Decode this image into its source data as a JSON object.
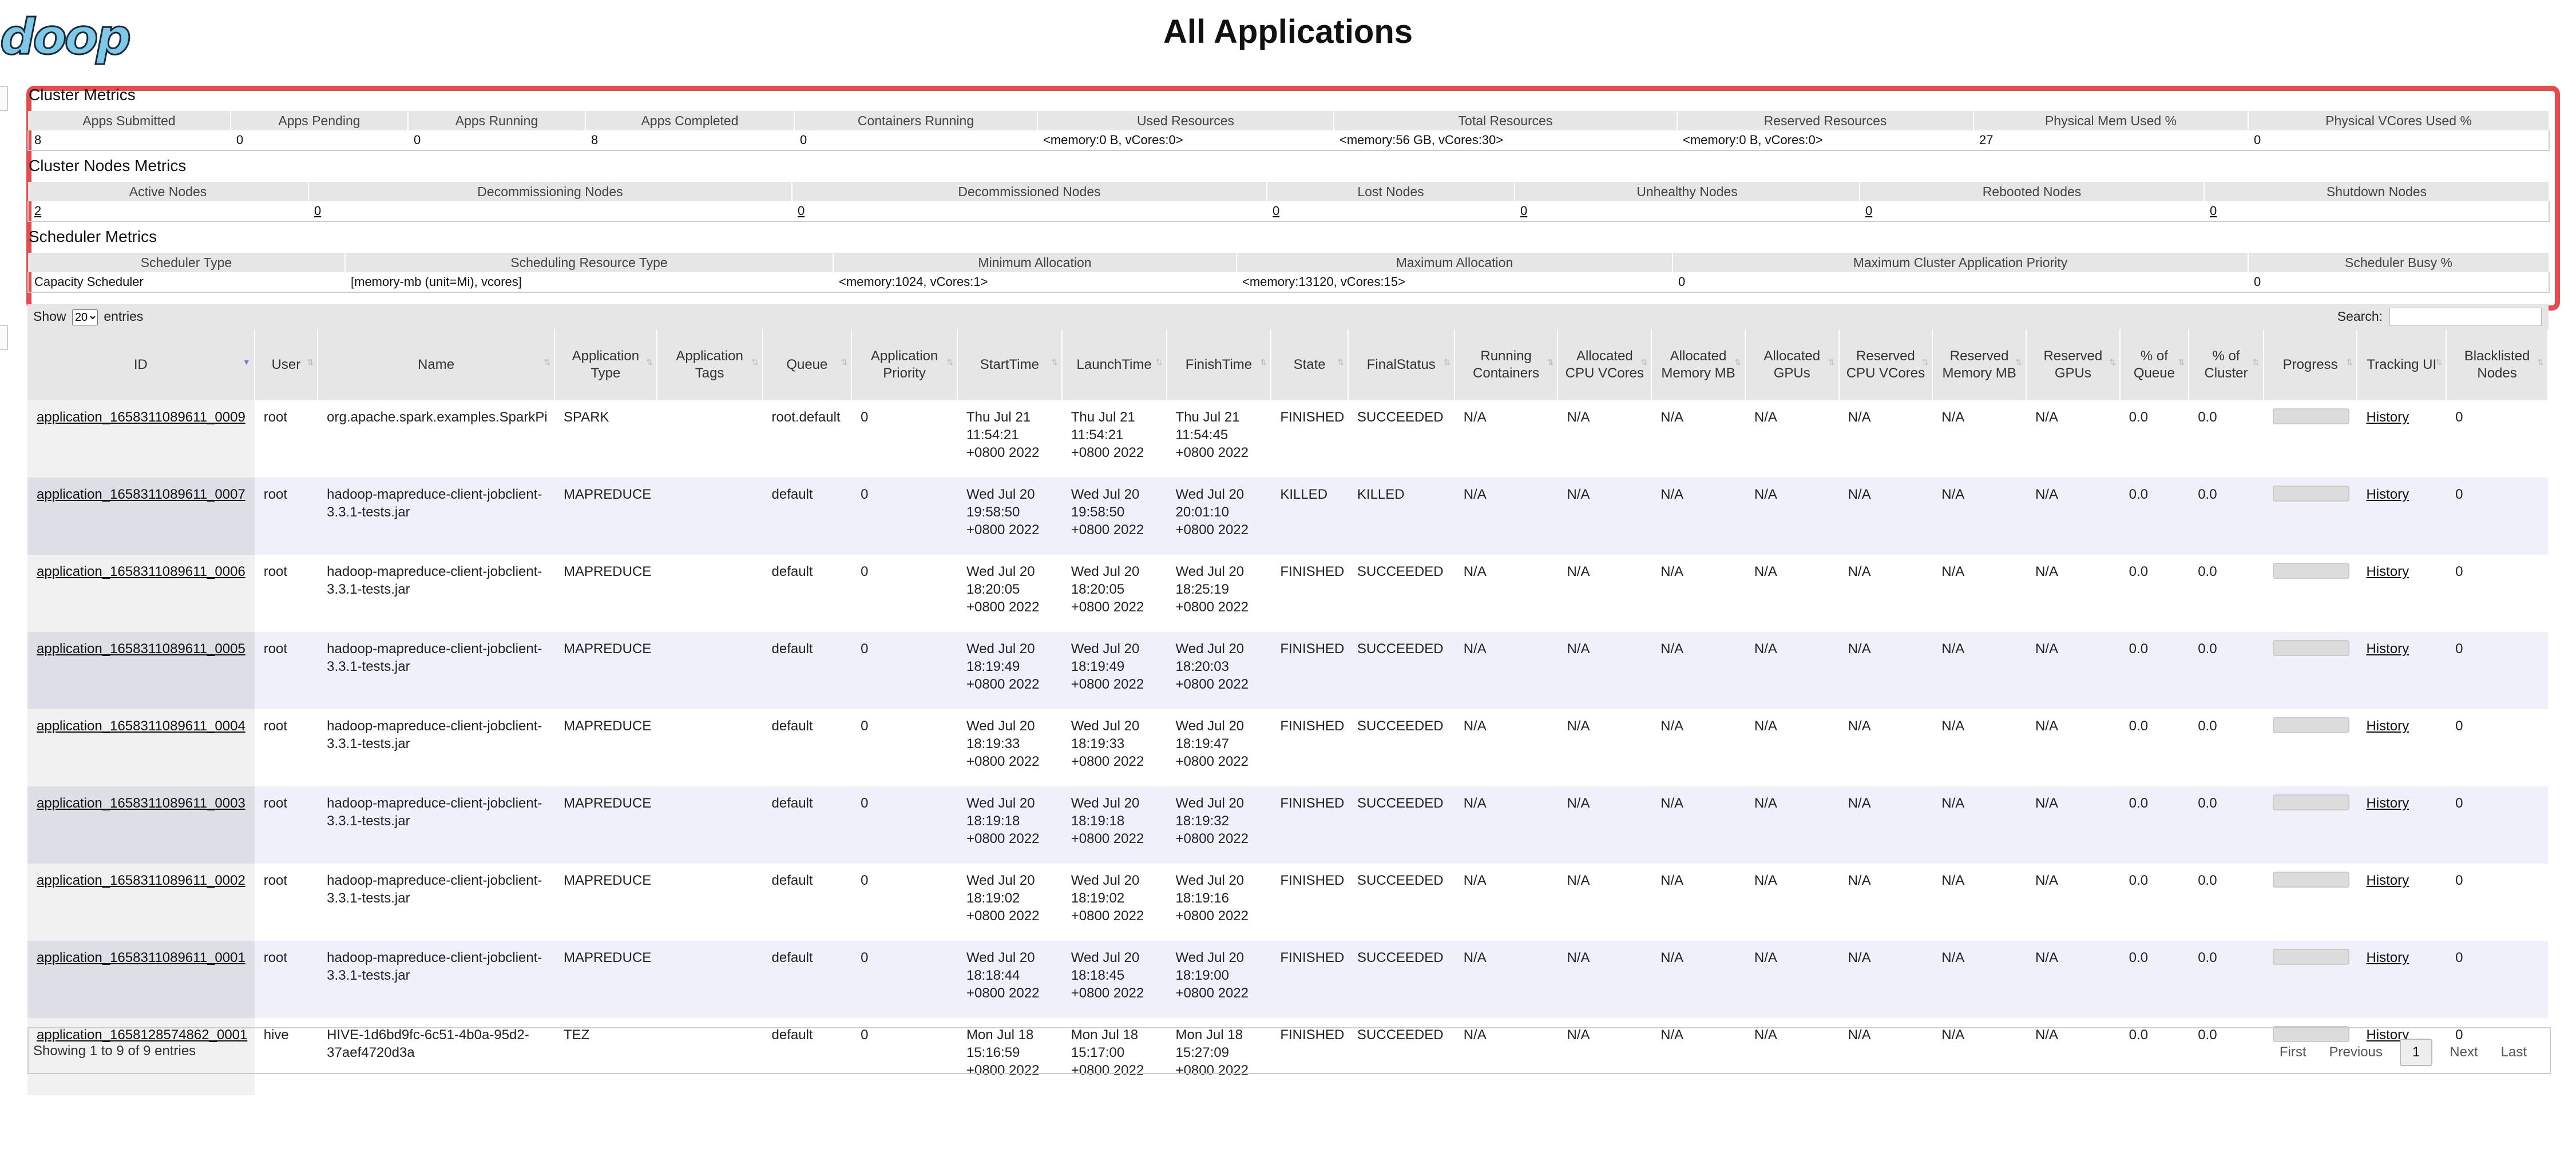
{
  "header": {
    "logo_text": "doop",
    "title": "All Applications"
  },
  "cluster_metrics": {
    "label": "Cluster Metrics",
    "headers": [
      "Apps Submitted",
      "Apps Pending",
      "Apps Running",
      "Apps Completed",
      "Containers Running",
      "Used Resources",
      "Total Resources",
      "Reserved Resources",
      "Physical Mem Used %",
      "Physical VCores Used %"
    ],
    "values": [
      "8",
      "0",
      "0",
      "8",
      "0",
      "<memory:0 B, vCores:0>",
      "<memory:56 GB, vCores:30>",
      "<memory:0 B, vCores:0>",
      "27",
      "0"
    ]
  },
  "nodes_metrics": {
    "label": "Cluster Nodes Metrics",
    "headers": [
      "Active Nodes",
      "Decommissioning Nodes",
      "Decommissioned Nodes",
      "Lost Nodes",
      "Unhealthy Nodes",
      "Rebooted Nodes",
      "Shutdown Nodes"
    ],
    "values": [
      "2",
      "0",
      "0",
      "0",
      "0",
      "0",
      "0"
    ]
  },
  "scheduler_metrics": {
    "label": "Scheduler Metrics",
    "headers": [
      "Scheduler Type",
      "Scheduling Resource Type",
      "Minimum Allocation",
      "Maximum Allocation",
      "Maximum Cluster Application Priority",
      "Scheduler Busy %"
    ],
    "values": [
      "Capacity Scheduler",
      "[memory-mb (unit=Mi), vcores]",
      "<memory:1024, vCores:1>",
      "<memory:13120, vCores:15>",
      "0",
      "0"
    ]
  },
  "controls": {
    "show_label": "Show",
    "entries_value": "20",
    "entries_label": "entries",
    "search_label": "Search:"
  },
  "columns": [
    "ID",
    "User",
    "Name",
    "Application Type",
    "Application Tags",
    "Queue",
    "Application Priority",
    "StartTime",
    "LaunchTime",
    "FinishTime",
    "State",
    "FinalStatus",
    "Running Containers",
    "Allocated CPU VCores",
    "Allocated Memory MB",
    "Allocated GPUs",
    "Reserved CPU VCores",
    "Reserved Memory MB",
    "Reserved GPUs",
    "% of Queue",
    "% of Cluster",
    "Progress",
    "Tracking UI",
    "Blacklisted Nodes"
  ],
  "rows": [
    {
      "id": "application_1658311089611_0009",
      "user": "root",
      "name": "org.apache.spark.examples.SparkPi",
      "type": "SPARK",
      "tags": "",
      "queue": "root.default",
      "priority": "0",
      "start": "Thu Jul 21 11:54:21 +0800 2022",
      "launch": "Thu Jul 21 11:54:21 +0800 2022",
      "finish": "Thu Jul 21 11:54:45 +0800 2022",
      "state": "FINISHED",
      "final": "SUCCEEDED",
      "running": "N/A",
      "acpu": "N/A",
      "amem": "N/A",
      "agpu": "N/A",
      "rcpu": "N/A",
      "rmem": "N/A",
      "rgpu": "N/A",
      "pqueue": "0.0",
      "pcluster": "0.0",
      "progress": 0,
      "tracking": "History",
      "blacklisted": "0"
    },
    {
      "id": "application_1658311089611_0007",
      "user": "root",
      "name": "hadoop-mapreduce-client-jobclient-3.3.1-tests.jar",
      "type": "MAPREDUCE",
      "tags": "",
      "queue": "default",
      "priority": "0",
      "start": "Wed Jul 20 19:58:50 +0800 2022",
      "launch": "Wed Jul 20 19:58:50 +0800 2022",
      "finish": "Wed Jul 20 20:01:10 +0800 2022",
      "state": "KILLED",
      "final": "KILLED",
      "running": "N/A",
      "acpu": "N/A",
      "amem": "N/A",
      "agpu": "N/A",
      "rcpu": "N/A",
      "rmem": "N/A",
      "rgpu": "N/A",
      "pqueue": "0.0",
      "pcluster": "0.0",
      "progress": 0,
      "tracking": "History",
      "blacklisted": "0"
    },
    {
      "id": "application_1658311089611_0006",
      "user": "root",
      "name": "hadoop-mapreduce-client-jobclient-3.3.1-tests.jar",
      "type": "MAPREDUCE",
      "tags": "",
      "queue": "default",
      "priority": "0",
      "start": "Wed Jul 20 18:20:05 +0800 2022",
      "launch": "Wed Jul 20 18:20:05 +0800 2022",
      "finish": "Wed Jul 20 18:25:19 +0800 2022",
      "state": "FINISHED",
      "final": "SUCCEEDED",
      "running": "N/A",
      "acpu": "N/A",
      "amem": "N/A",
      "agpu": "N/A",
      "rcpu": "N/A",
      "rmem": "N/A",
      "rgpu": "N/A",
      "pqueue": "0.0",
      "pcluster": "0.0",
      "progress": 0,
      "tracking": "History",
      "blacklisted": "0"
    },
    {
      "id": "application_1658311089611_0005",
      "user": "root",
      "name": "hadoop-mapreduce-client-jobclient-3.3.1-tests.jar",
      "type": "MAPREDUCE",
      "tags": "",
      "queue": "default",
      "priority": "0",
      "start": "Wed Jul 20 18:19:49 +0800 2022",
      "launch": "Wed Jul 20 18:19:49 +0800 2022",
      "finish": "Wed Jul 20 18:20:03 +0800 2022",
      "state": "FINISHED",
      "final": "SUCCEEDED",
      "running": "N/A",
      "acpu": "N/A",
      "amem": "N/A",
      "agpu": "N/A",
      "rcpu": "N/A",
      "rmem": "N/A",
      "rgpu": "N/A",
      "pqueue": "0.0",
      "pcluster": "0.0",
      "progress": 0,
      "tracking": "History",
      "blacklisted": "0"
    },
    {
      "id": "application_1658311089611_0004",
      "user": "root",
      "name": "hadoop-mapreduce-client-jobclient-3.3.1-tests.jar",
      "type": "MAPREDUCE",
      "tags": "",
      "queue": "default",
      "priority": "0",
      "start": "Wed Jul 20 18:19:33 +0800 2022",
      "launch": "Wed Jul 20 18:19:33 +0800 2022",
      "finish": "Wed Jul 20 18:19:47 +0800 2022",
      "state": "FINISHED",
      "final": "SUCCEEDED",
      "running": "N/A",
      "acpu": "N/A",
      "amem": "N/A",
      "agpu": "N/A",
      "rcpu": "N/A",
      "rmem": "N/A",
      "rgpu": "N/A",
      "pqueue": "0.0",
      "pcluster": "0.0",
      "progress": 0,
      "tracking": "History",
      "blacklisted": "0"
    },
    {
      "id": "application_1658311089611_0003",
      "user": "root",
      "name": "hadoop-mapreduce-client-jobclient-3.3.1-tests.jar",
      "type": "MAPREDUCE",
      "tags": "",
      "queue": "default",
      "priority": "0",
      "start": "Wed Jul 20 18:19:18 +0800 2022",
      "launch": "Wed Jul 20 18:19:18 +0800 2022",
      "finish": "Wed Jul 20 18:19:32 +0800 2022",
      "state": "FINISHED",
      "final": "SUCCEEDED",
      "running": "N/A",
      "acpu": "N/A",
      "amem": "N/A",
      "agpu": "N/A",
      "rcpu": "N/A",
      "rmem": "N/A",
      "rgpu": "N/A",
      "pqueue": "0.0",
      "pcluster": "0.0",
      "progress": 0,
      "tracking": "History",
      "blacklisted": "0"
    },
    {
      "id": "application_1658311089611_0002",
      "user": "root",
      "name": "hadoop-mapreduce-client-jobclient-3.3.1-tests.jar",
      "type": "MAPREDUCE",
      "tags": "",
      "queue": "default",
      "priority": "0",
      "start": "Wed Jul 20 18:19:02 +0800 2022",
      "launch": "Wed Jul 20 18:19:02 +0800 2022",
      "finish": "Wed Jul 20 18:19:16 +0800 2022",
      "state": "FINISHED",
      "final": "SUCCEEDED",
      "running": "N/A",
      "acpu": "N/A",
      "amem": "N/A",
      "agpu": "N/A",
      "rcpu": "N/A",
      "rmem": "N/A",
      "rgpu": "N/A",
      "pqueue": "0.0",
      "pcluster": "0.0",
      "progress": 0,
      "tracking": "History",
      "blacklisted": "0"
    },
    {
      "id": "application_1658311089611_0001",
      "user": "root",
      "name": "hadoop-mapreduce-client-jobclient-3.3.1-tests.jar",
      "type": "MAPREDUCE",
      "tags": "",
      "queue": "default",
      "priority": "0",
      "start": "Wed Jul 20 18:18:44 +0800 2022",
      "launch": "Wed Jul 20 18:18:45 +0800 2022",
      "finish": "Wed Jul 20 18:19:00 +0800 2022",
      "state": "FINISHED",
      "final": "SUCCEEDED",
      "running": "N/A",
      "acpu": "N/A",
      "amem": "N/A",
      "agpu": "N/A",
      "rcpu": "N/A",
      "rmem": "N/A",
      "rgpu": "N/A",
      "pqueue": "0.0",
      "pcluster": "0.0",
      "progress": 0,
      "tracking": "History",
      "blacklisted": "0"
    },
    {
      "id": "application_1658128574862_0001",
      "user": "hive",
      "name": "HIVE-1d6bd9fc-6c51-4b0a-95d2-37aef4720d3a",
      "type": "TEZ",
      "tags": "",
      "queue": "default",
      "priority": "0",
      "start": "Mon Jul 18 15:16:59 +0800 2022",
      "launch": "Mon Jul 18 15:17:00 +0800 2022",
      "finish": "Mon Jul 18 15:27:09 +0800 2022",
      "state": "FINISHED",
      "final": "SUCCEEDED",
      "running": "N/A",
      "acpu": "N/A",
      "amem": "N/A",
      "agpu": "N/A",
      "rcpu": "N/A",
      "rmem": "N/A",
      "rgpu": "N/A",
      "pqueue": "0.0",
      "pcluster": "0.0",
      "progress": 0,
      "tracking": "History",
      "blacklisted": "0"
    }
  ],
  "footer": {
    "info": "Showing 1 to 9 of 9 entries",
    "pager": {
      "first": "First",
      "previous": "Previous",
      "current": "1",
      "next": "Next",
      "last": "Last"
    }
  },
  "colors": {
    "highlight_border": "#e74c4c",
    "header_bg": "#e6e6e6",
    "stripe": "#f0f0fa"
  }
}
